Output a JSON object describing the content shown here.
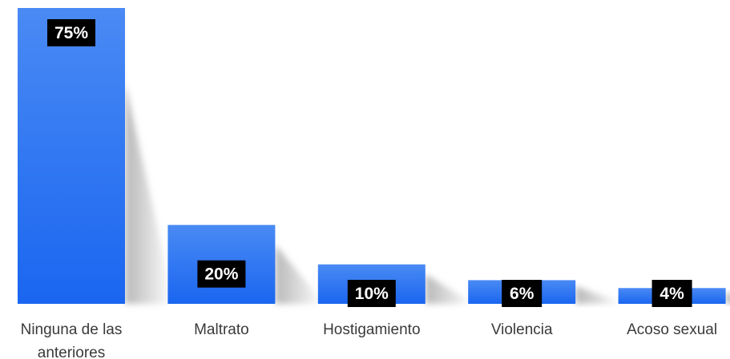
{
  "chart_data": {
    "type": "bar",
    "categories": [
      [
        "Ninguna de las",
        "anteriores"
      ],
      [
        "Maltrato"
      ],
      [
        "Hostigamiento"
      ],
      [
        "Violencia"
      ],
      [
        "Acoso sexual"
      ]
    ],
    "values": [
      75,
      20,
      10,
      6,
      4
    ],
    "value_labels": [
      "75%",
      "20%",
      "10%",
      "6%",
      "4%"
    ],
    "ylim": [
      0,
      75
    ],
    "grid": false,
    "legend": "none",
    "colors": {
      "bar_top": "#4a8af4",
      "bar_bottom": "#1a66f0",
      "label_box": "#000000",
      "label_text": "#ffffff",
      "axis_text": "#3a3a3a",
      "shadow": "#b8b8b8"
    }
  }
}
